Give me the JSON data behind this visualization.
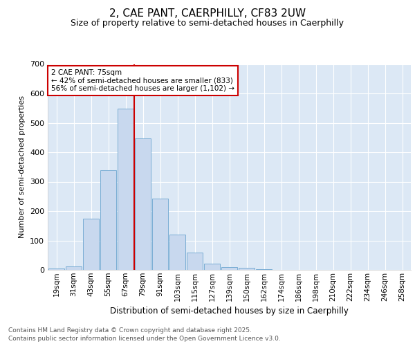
{
  "title1": "2, CAE PANT, CAERPHILLY, CF83 2UW",
  "title2": "Size of property relative to semi-detached houses in Caerphilly",
  "xlabel": "Distribution of semi-detached houses by size in Caerphilly",
  "ylabel": "Number of semi-detached properties",
  "categories": [
    "19sqm",
    "31sqm",
    "43sqm",
    "55sqm",
    "67sqm",
    "79sqm",
    "91sqm",
    "103sqm",
    "115sqm",
    "127sqm",
    "139sqm",
    "150sqm",
    "162sqm",
    "174sqm",
    "186sqm",
    "198sqm",
    "210sqm",
    "222sqm",
    "234sqm",
    "246sqm",
    "258sqm"
  ],
  "values": [
    5,
    12,
    175,
    338,
    548,
    448,
    242,
    120,
    60,
    22,
    10,
    8,
    2,
    0,
    0,
    0,
    0,
    0,
    0,
    0,
    0
  ],
  "bar_color": "#c8d8ee",
  "bar_edge_color": "#7aadd4",
  "vline_x": 4.5,
  "vline_color": "#cc0000",
  "annotation_text": "2 CAE PANT: 75sqm\n← 42% of semi-detached houses are smaller (833)\n56% of semi-detached houses are larger (1,102) →",
  "annotation_box_color": "#ffffff",
  "annotation_box_edge": "#cc0000",
  "ylim": [
    0,
    700
  ],
  "yticks": [
    0,
    100,
    200,
    300,
    400,
    500,
    600,
    700
  ],
  "footer1": "Contains HM Land Registry data © Crown copyright and database right 2025.",
  "footer2": "Contains public sector information licensed under the Open Government Licence v3.0.",
  "bg_color": "#ffffff",
  "plot_bg_color": "#dce8f5"
}
